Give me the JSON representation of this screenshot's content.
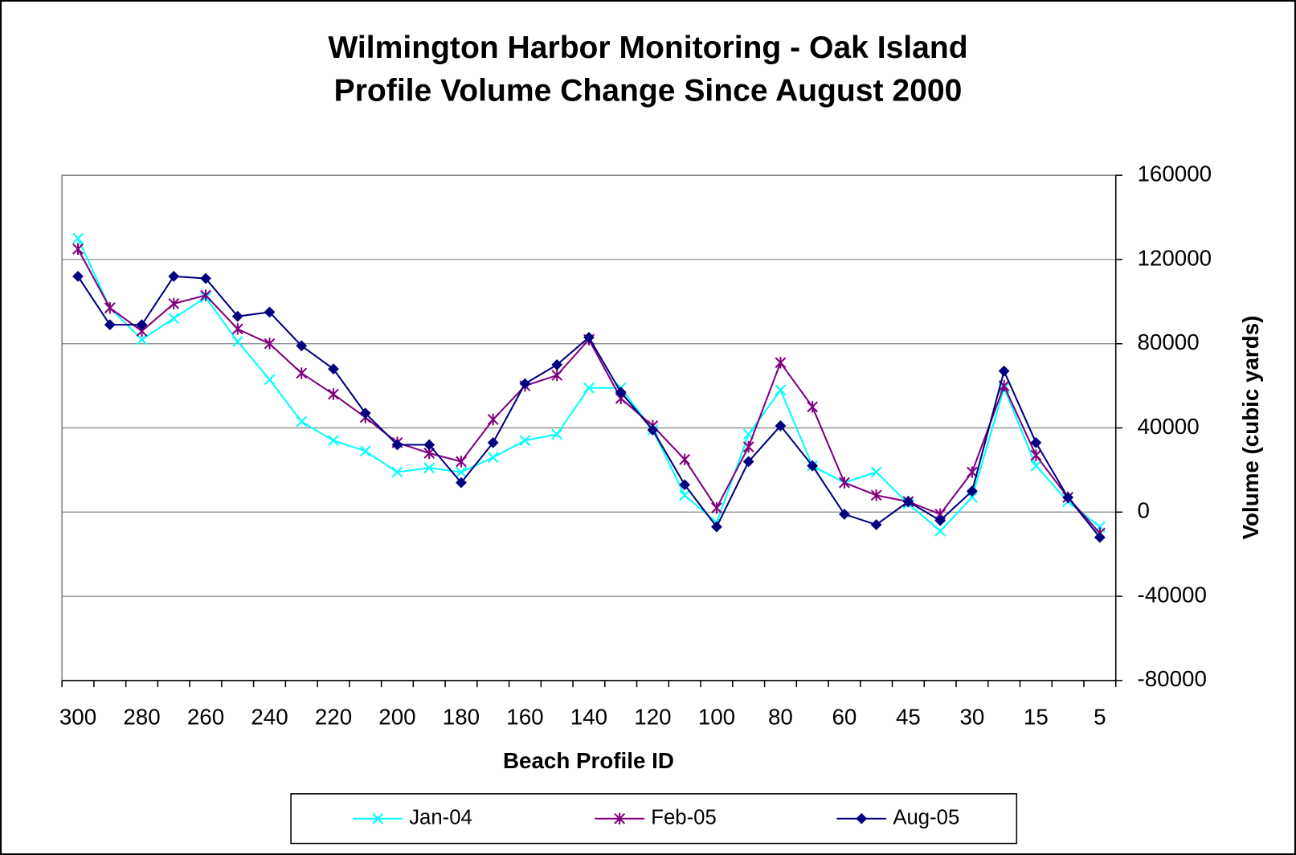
{
  "chart_data": {
    "type": "line",
    "title": [
      "Wilmington Harbor Monitoring - Oak Island",
      "Profile Volume Change Since August 2000"
    ],
    "x_label": "Beach Profile ID",
    "y_label": "Volume (cubic yards)",
    "y_axis_side": "right",
    "categories": [
      "300",
      null,
      "280",
      null,
      "260",
      null,
      "240",
      null,
      "220",
      null,
      "200",
      null,
      "180",
      null,
      "160",
      null,
      "140",
      null,
      "120",
      null,
      "100",
      null,
      "80",
      null,
      "60",
      null,
      "45",
      null,
      "30",
      null,
      "15",
      null,
      "5"
    ],
    "series": [
      {
        "name": "Jan-04",
        "color": "#00ffff",
        "marker": "x",
        "values": [
          130000,
          97000,
          82000,
          92000,
          102000,
          81000,
          63000,
          43000,
          34000,
          29000,
          19000,
          21000,
          19000,
          26000,
          34000,
          37000,
          59000,
          59000,
          39000,
          8000,
          -5000,
          37000,
          58000,
          22000,
          14000,
          19000,
          4000,
          -9000,
          7000,
          59000,
          22000,
          5000,
          -7000
        ]
      },
      {
        "name": "Feb-05",
        "color": "#800080",
        "marker": "star",
        "values": [
          125000,
          97000,
          86000,
          99000,
          103000,
          87000,
          80000,
          66000,
          56000,
          45000,
          33000,
          28000,
          24000,
          44000,
          60000,
          65000,
          82000,
          54000,
          41000,
          25000,
          2000,
          31000,
          71000,
          50000,
          14000,
          8000,
          5000,
          -1000,
          19000,
          60000,
          27000,
          7000,
          -10000
        ]
      },
      {
        "name": "Aug-05",
        "color": "#000080",
        "marker": "diamond",
        "values": [
          112000,
          89000,
          89000,
          112000,
          111000,
          93000,
          95000,
          79000,
          68000,
          47000,
          32000,
          32000,
          14000,
          33000,
          61000,
          70000,
          83000,
          57000,
          39000,
          13000,
          -7000,
          24000,
          41000,
          22000,
          -1000,
          -6000,
          5000,
          -4000,
          10000,
          67000,
          33000,
          7000,
          -12000
        ]
      }
    ],
    "ylim": [
      -80000,
      160000
    ],
    "yticks": [
      -80000,
      -40000,
      0,
      40000,
      80000,
      120000,
      160000
    ],
    "grid": true,
    "legend": "bottom"
  }
}
